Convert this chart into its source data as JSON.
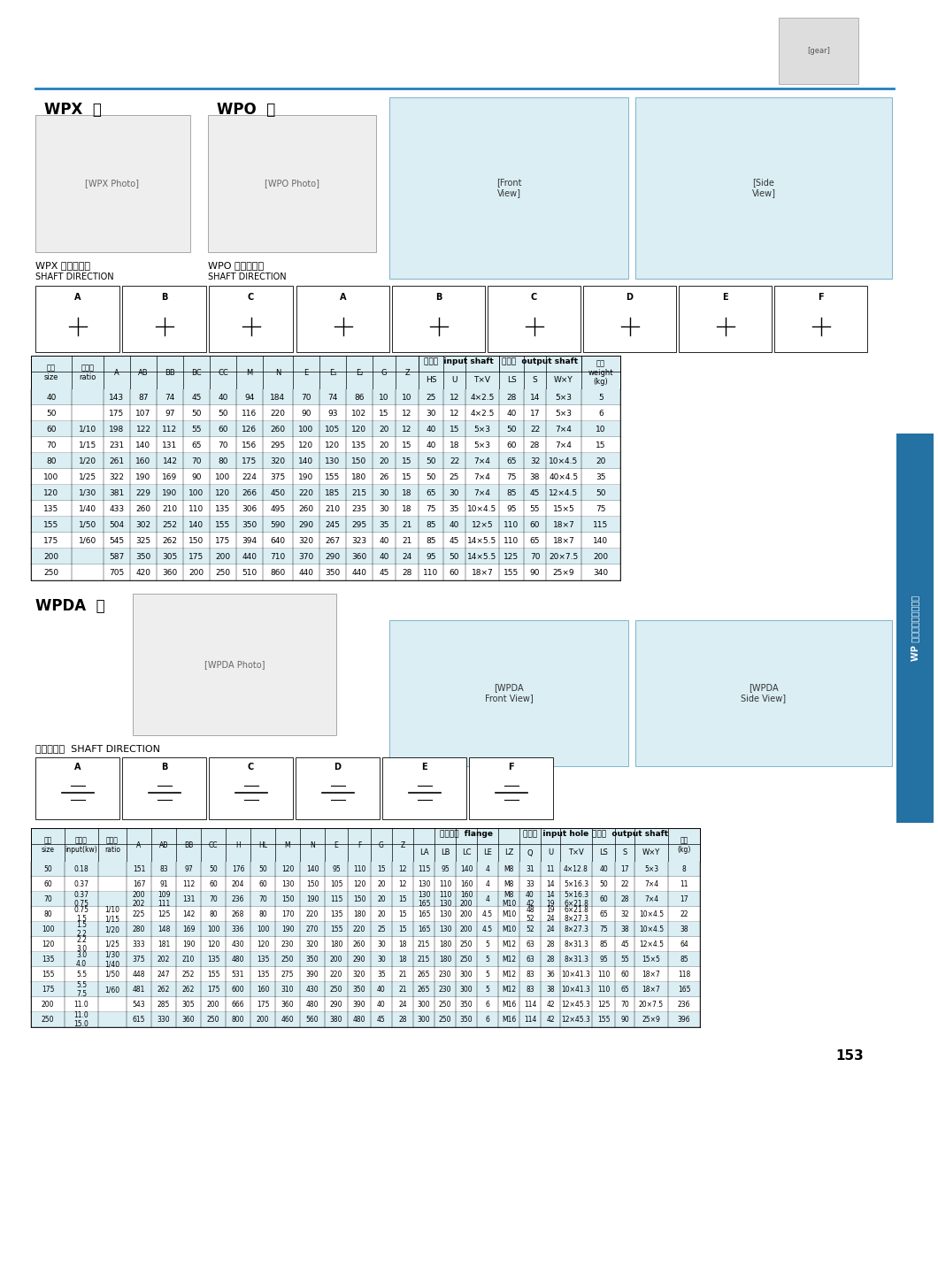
{
  "page_number": "153",
  "bg_color": "#ffffff",
  "light_blue": "#daeef3",
  "side_tab_color": "#2471a3",
  "top_line_color": "#2080c0",
  "wpx_label": "WPX  型",
  "wpo_label": "WPO  型",
  "wpda_label": "WPDA  型",
  "wpx_shaft_cn": "WPX 轴指向表示",
  "wpx_shaft_en": "SHAFT DIRECTION",
  "wpo_shaft_cn": "WPO 轴指向表示",
  "wpo_shaft_en": "SHAFT DIRECTION",
  "wpda_shaft_text": "轴指向表示  SHAFT DIRECTION",
  "side_tab_text": "WP 系列蜗轮蜗杆减速机",
  "table1_data": [
    [
      "40",
      "",
      "143",
      "87",
      "74",
      "45",
      "40",
      "94",
      "184",
      "70",
      "74",
      "86",
      "10",
      "10",
      "25",
      "12",
      "4×2.5",
      "28",
      "14",
      "5×3",
      "5"
    ],
    [
      "50",
      "",
      "175",
      "107",
      "97",
      "50",
      "50",
      "116",
      "220",
      "90",
      "93",
      "102",
      "15",
      "12",
      "30",
      "12",
      "4×2.5",
      "40",
      "17",
      "5×3",
      "6"
    ],
    [
      "60",
      "1/10",
      "198",
      "122",
      "112",
      "55",
      "60",
      "126",
      "260",
      "100",
      "105",
      "120",
      "20",
      "12",
      "40",
      "15",
      "5×3",
      "50",
      "22",
      "7×4",
      "10"
    ],
    [
      "70",
      "1/15",
      "231",
      "140",
      "131",
      "65",
      "70",
      "156",
      "295",
      "120",
      "120",
      "135",
      "20",
      "15",
      "40",
      "18",
      "5×3",
      "60",
      "28",
      "7×4",
      "15"
    ],
    [
      "80",
      "1/20",
      "261",
      "160",
      "142",
      "70",
      "80",
      "175",
      "320",
      "140",
      "130",
      "150",
      "20",
      "15",
      "50",
      "22",
      "7×4",
      "65",
      "32",
      "10×4.5",
      "20"
    ],
    [
      "100",
      "1/25",
      "322",
      "190",
      "169",
      "90",
      "100",
      "224",
      "375",
      "190",
      "155",
      "180",
      "26",
      "15",
      "50",
      "25",
      "7×4",
      "75",
      "38",
      "40×4.5",
      "35"
    ],
    [
      "120",
      "1/30",
      "381",
      "229",
      "190",
      "100",
      "120",
      "266",
      "450",
      "220",
      "185",
      "215",
      "30",
      "18",
      "65",
      "30",
      "7×4",
      "85",
      "45",
      "12×4.5",
      "50"
    ],
    [
      "135",
      "1/40",
      "433",
      "260",
      "210",
      "110",
      "135",
      "306",
      "495",
      "260",
      "210",
      "235",
      "30",
      "18",
      "75",
      "35",
      "10×4.5",
      "95",
      "55",
      "15×5",
      "75"
    ],
    [
      "155",
      "1/50",
      "504",
      "302",
      "252",
      "140",
      "155",
      "350",
      "590",
      "290",
      "245",
      "295",
      "35",
      "21",
      "85",
      "40",
      "12×5",
      "110",
      "60",
      "18×7",
      "115"
    ],
    [
      "175",
      "1/60",
      "545",
      "325",
      "262",
      "150",
      "175",
      "394",
      "640",
      "320",
      "267",
      "323",
      "40",
      "21",
      "85",
      "45",
      "14×5.5",
      "110",
      "65",
      "18×7",
      "140"
    ],
    [
      "200",
      "",
      "587",
      "350",
      "305",
      "175",
      "200",
      "440",
      "710",
      "370",
      "290",
      "360",
      "40",
      "24",
      "95",
      "50",
      "14×5.5",
      "125",
      "70",
      "20×7.5",
      "200"
    ],
    [
      "250",
      "",
      "705",
      "420",
      "360",
      "200",
      "250",
      "510",
      "860",
      "440",
      "350",
      "440",
      "45",
      "28",
      "110",
      "60",
      "18×7",
      "155",
      "90",
      "25×9",
      "340"
    ]
  ],
  "table2_data": [
    [
      "50",
      "0.18",
      "",
      "151",
      "83",
      "97",
      "50",
      "176",
      "50",
      "120",
      "140",
      "95",
      "110",
      "15",
      "12",
      "115",
      "95",
      "140",
      "4",
      "M8",
      "31",
      "11",
      "4×12.8",
      "40",
      "17",
      "5×3",
      "8"
    ],
    [
      "60",
      "0.37",
      "",
      "167",
      "91",
      "112",
      "60",
      "204",
      "60",
      "130",
      "150",
      "105",
      "120",
      "20",
      "12",
      "130",
      "110",
      "160",
      "4",
      "M8",
      "33",
      "14",
      "5×16.3",
      "50",
      "22",
      "7×4",
      "11"
    ],
    [
      "70",
      "0.37\n0.75",
      "",
      "200\n202",
      "109\n111",
      "131",
      "70",
      "236",
      "70",
      "150",
      "190",
      "115",
      "150",
      "20",
      "15",
      "130\n165",
      "110\n130",
      "160\n200",
      "4",
      "M8\nM10",
      "40\n42",
      "14\n19",
      "5×16.3\n6×21.8",
      "60",
      "28",
      "7×4",
      "17"
    ],
    [
      "80",
      "0.75\n1.5",
      "1/10\n1/15",
      "225",
      "125",
      "142",
      "80",
      "268",
      "80",
      "170",
      "220",
      "135",
      "180",
      "20",
      "15",
      "165",
      "130",
      "200",
      "4.5",
      "M10",
      "48\n52",
      "19\n24",
      "6×21.8\n8×27.3",
      "65",
      "32",
      "10×4.5",
      "22"
    ],
    [
      "100",
      "1.5\n2.2",
      "1/20",
      "280",
      "148",
      "169",
      "100",
      "336",
      "100",
      "190",
      "270",
      "155",
      "220",
      "25",
      "15",
      "165",
      "130",
      "200",
      "4.5",
      "M10",
      "52",
      "24",
      "8×27.3",
      "75",
      "38",
      "10×4.5",
      "38"
    ],
    [
      "120",
      "2.2\n3.0",
      "1/25",
      "333",
      "181",
      "190",
      "120",
      "430",
      "120",
      "230",
      "320",
      "180",
      "260",
      "30",
      "18",
      "215",
      "180",
      "250",
      "5",
      "M12",
      "63",
      "28",
      "8×31.3",
      "85",
      "45",
      "12×4.5",
      "64"
    ],
    [
      "135",
      "3.0\n4.0",
      "1/30\n1/40",
      "375",
      "202",
      "210",
      "135",
      "480",
      "135",
      "250",
      "350",
      "200",
      "290",
      "30",
      "18",
      "215",
      "180",
      "250",
      "5",
      "M12",
      "63",
      "28",
      "8×31.3",
      "95",
      "55",
      "15×5",
      "85"
    ],
    [
      "155",
      "5.5",
      "1/50",
      "448",
      "247",
      "252",
      "155",
      "531",
      "135",
      "275",
      "390",
      "220",
      "320",
      "35",
      "21",
      "265",
      "230",
      "300",
      "5",
      "M12",
      "83",
      "36",
      "10×41.3",
      "110",
      "60",
      "18×7",
      "118"
    ],
    [
      "175",
      "5.5\n7.5",
      "1/60",
      "481",
      "262",
      "262",
      "175",
      "600",
      "160",
      "310",
      "430",
      "250",
      "350",
      "40",
      "21",
      "265",
      "230",
      "300",
      "5",
      "M12",
      "83",
      "38",
      "10×41.3",
      "110",
      "65",
      "18×7",
      "165"
    ],
    [
      "200",
      "11.0",
      "",
      "543",
      "285",
      "305",
      "200",
      "666",
      "175",
      "360",
      "480",
      "290",
      "390",
      "40",
      "24",
      "300",
      "250",
      "350",
      "6",
      "M16",
      "114",
      "42",
      "12×45.3",
      "125",
      "70",
      "20×7.5",
      "236"
    ],
    [
      "250",
      "11.0\n15.0",
      "",
      "615",
      "330",
      "360",
      "250",
      "800",
      "200",
      "460",
      "560",
      "380",
      "480",
      "45",
      "28",
      "300",
      "250",
      "350",
      "6",
      "M16",
      "114",
      "42",
      "12×45.3",
      "155",
      "90",
      "25×9",
      "396"
    ]
  ]
}
